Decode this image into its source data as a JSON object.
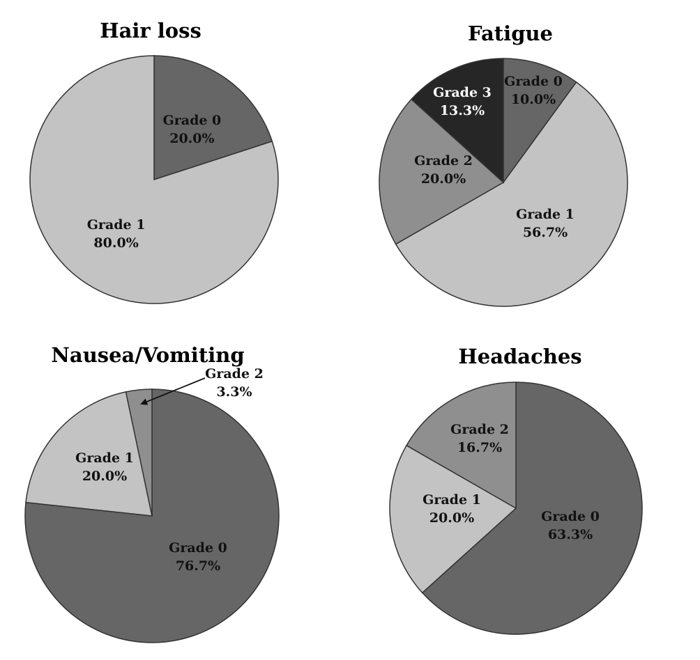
{
  "colors": {
    "grade_0": "#666666",
    "grade_1": "#c3c3c3",
    "grade_2": "#8f8f8f",
    "grade_3": "#262626",
    "outline": "#333333"
  },
  "chart_data": [
    {
      "type": "pie",
      "title": "Hair loss",
      "slices": [
        {
          "label": "Grade 0",
          "value": 20.0,
          "value_text": "20.0%",
          "color_key": "grade_0"
        },
        {
          "label": "Grade 1",
          "value": 80.0,
          "value_text": "80.0%",
          "color_key": "grade_1"
        }
      ]
    },
    {
      "type": "pie",
      "title": "Fatigue",
      "slices": [
        {
          "label": "Grade 0",
          "value": 10.0,
          "value_text": "10.0%",
          "color_key": "grade_0"
        },
        {
          "label": "Grade 1",
          "value": 56.7,
          "value_text": "56.7%",
          "color_key": "grade_1"
        },
        {
          "label": "Grade 2",
          "value": 20.0,
          "value_text": "20.0%",
          "color_key": "grade_2"
        },
        {
          "label": "Grade 3",
          "value": 13.3,
          "value_text": "13.3%",
          "color_key": "grade_3"
        }
      ]
    },
    {
      "type": "pie",
      "title": "Nausea/Vomiting",
      "slices": [
        {
          "label": "Grade 0",
          "value": 76.7,
          "value_text": "76.7%",
          "color_key": "grade_0"
        },
        {
          "label": "Grade 1",
          "value": 20.0,
          "value_text": "20.0%",
          "color_key": "grade_1"
        },
        {
          "label": "Grade 2",
          "value": 3.3,
          "value_text": "3.3%",
          "color_key": "grade_2",
          "callout": true
        }
      ]
    },
    {
      "type": "pie",
      "title": "Headaches",
      "slices": [
        {
          "label": "Grade 0",
          "value": 63.3,
          "value_text": "63.3%",
          "color_key": "grade_0"
        },
        {
          "label": "Grade 1",
          "value": 20.0,
          "value_text": "20.0%",
          "color_key": "grade_1"
        },
        {
          "label": "Grade 2",
          "value": 16.7,
          "value_text": "16.7%",
          "color_key": "grade_2"
        }
      ]
    }
  ]
}
